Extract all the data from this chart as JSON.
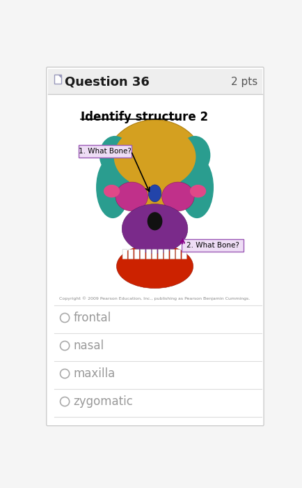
{
  "question_header": "Question 36",
  "points": "2 pts",
  "subtitle": "Identify structure 2",
  "label1": "1. What Bone?",
  "label2": "2. What Bone?",
  "copyright": "Copyright © 2009 Pearson Education, Inc., publishing as Pearson Benjamin Cummings.",
  "options": [
    "frontal",
    "nasal",
    "maxilla",
    "zygomatic"
  ],
  "bg_color": "#f5f5f5",
  "card_color": "#ffffff",
  "header_bg": "#eeeeee",
  "header_text_color": "#1a1a1a",
  "pts_color": "#555555",
  "subtitle_color": "#000000",
  "option_text_color": "#999999",
  "divider_color": "#dddddd",
  "label_box_color": "#eeddf5",
  "label_box_border": "#9b59b6",
  "arrow_color": "#000000"
}
